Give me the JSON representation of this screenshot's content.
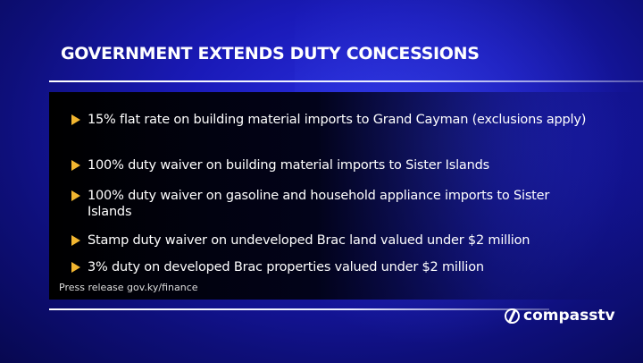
{
  "title": "GOVERNMENT EXTENDS DUTY CONCESSIONS",
  "bullets": [
    "15% flat rate on building material imports to Grand Cayman (exclusions apply)",
    "100% duty waiver on building material imports to Sister Islands",
    "100% duty waiver on gasoline and household appliance imports to Sister Islands",
    "Stamp duty waiver on undeveloped Brac land valued under $2 million",
    "3% duty on developed Brac properties valued under $2 million"
  ],
  "source": "Press release gov.ky/finance",
  "logo": "compasstv",
  "colors": {
    "bullet": "#f2b630",
    "background": "#1a1ab8"
  }
}
